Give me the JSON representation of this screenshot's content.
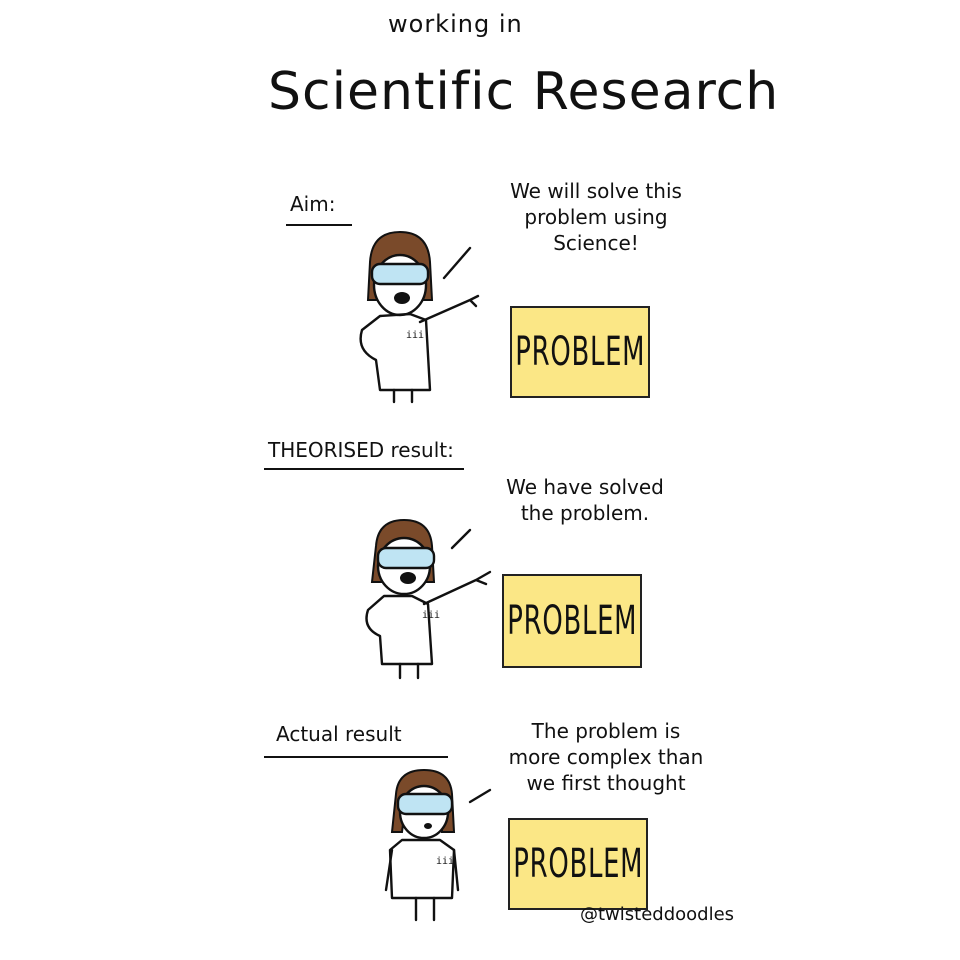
{
  "title": {
    "line1": "working in",
    "line2": "Scientific Research"
  },
  "panels": [
    {
      "label": "Aim:",
      "speech": [
        "We will solve this",
        "problem using",
        "Science!"
      ],
      "box": "PROBLEM",
      "expression": "happy"
    },
    {
      "label": "THEORISED result:",
      "speech": [
        "We have solved",
        "the problem."
      ],
      "box": "PROBLEM",
      "expression": "happy"
    },
    {
      "label": "Actual result",
      "speech": [
        "The problem is",
        "more complex than",
        "we first thought"
      ],
      "box": "PROBLEM",
      "expression": "worried"
    }
  ],
  "credit": "@twisteddoodles",
  "colors": {
    "box_fill": "#fbe786",
    "ink": "#111111",
    "hair": "#7a4a2a",
    "goggles": "#bfe4f3"
  }
}
